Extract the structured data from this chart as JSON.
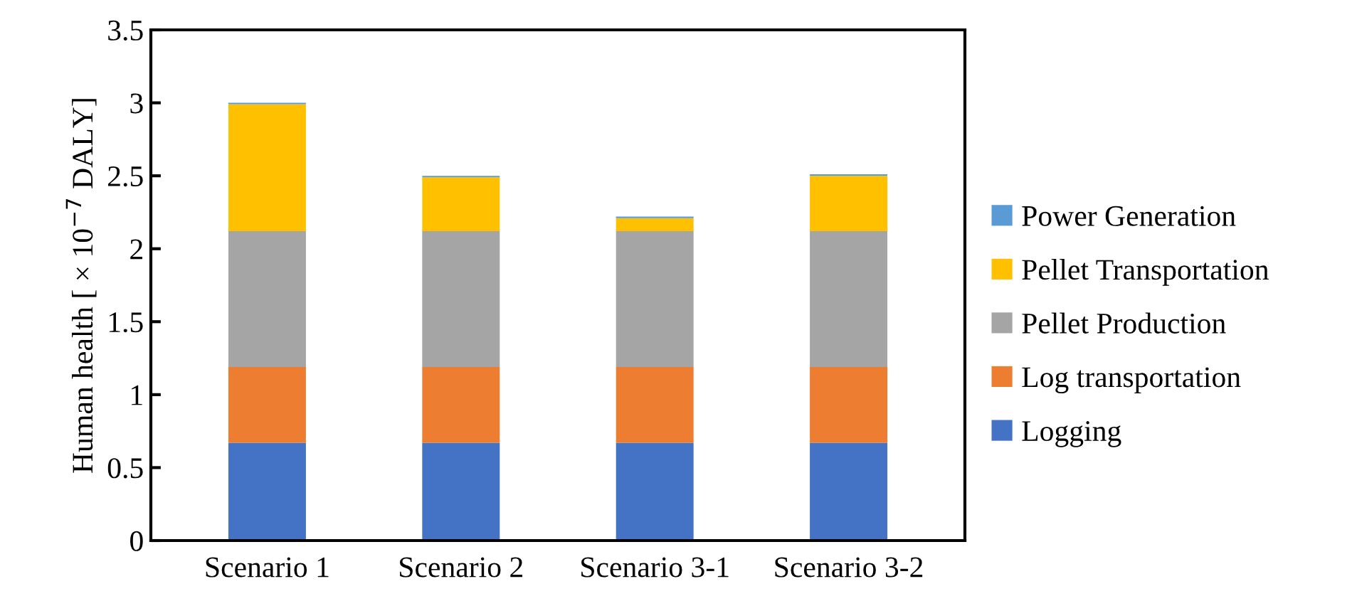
{
  "chart_data": {
    "type": "bar",
    "stacked": true,
    "ylabel": "Human health [ × 10$^{−7}$ DALY]",
    "categories": [
      "Scenario 1",
      "Scenario 2",
      "Scenario 3-1",
      "Scenario 3-2"
    ],
    "series": [
      {
        "name": "Logging",
        "color": "#4472c4",
        "values": [
          0.67,
          0.67,
          0.67,
          0.67
        ]
      },
      {
        "name": "Log transportation",
        "color": "#ed7d31",
        "values": [
          0.52,
          0.52,
          0.52,
          0.52
        ]
      },
      {
        "name": "Pellet Production",
        "color": "#a5a5a5",
        "values": [
          0.93,
          0.93,
          0.93,
          0.93
        ]
      },
      {
        "name": "Pellet Transportation",
        "color": "#ffc000",
        "values": [
          0.87,
          0.37,
          0.09,
          0.38
        ]
      },
      {
        "name": "Power Generation",
        "color": "#5b9bd5",
        "values": [
          0.01,
          0.01,
          0.01,
          0.01
        ]
      }
    ],
    "ylim": [
      0,
      3.5
    ],
    "yticks": [
      0,
      0.5,
      1,
      1.5,
      2,
      2.5,
      3,
      3.5
    ],
    "grid": false,
    "legend": "right"
  }
}
